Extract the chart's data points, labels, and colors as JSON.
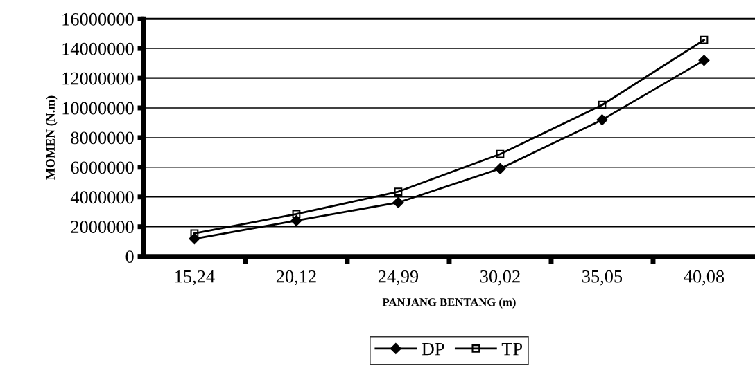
{
  "chart_data": {
    "type": "line",
    "xlabel": "PANJANG BENTANG (m)",
    "ylabel": "MOMEN (N.m)",
    "categories": [
      "15,24",
      "20,12",
      "24,99",
      "30,02",
      "35,05",
      "40,08"
    ],
    "series": [
      {
        "name": "DP",
        "color": "#000000",
        "marker": "diamond",
        "values": [
          1190000,
          2410000,
          3630000,
          5910000,
          9200000,
          13200000
        ]
      },
      {
        "name": "TP",
        "color": "#000000",
        "marker": "square",
        "values": [
          1550000,
          2850000,
          4360000,
          6890000,
          10200000,
          14580000
        ]
      }
    ],
    "ylim": [
      0,
      16000000
    ],
    "yticks": [
      0,
      2000000,
      4000000,
      6000000,
      8000000,
      10000000,
      12000000,
      14000000,
      16000000
    ],
    "grid": "y",
    "legend": "bottom",
    "line_style": "solid"
  }
}
